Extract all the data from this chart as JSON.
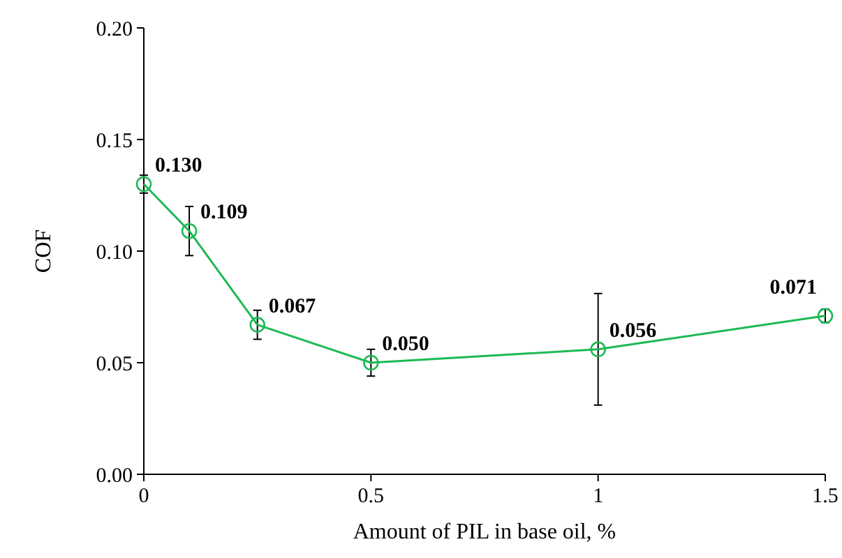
{
  "chart_data": {
    "type": "line",
    "xlabel": "Amount of PIL in base oil, %",
    "ylabel": "COF",
    "x": [
      0,
      0.1,
      0.25,
      0.5,
      1,
      1.5
    ],
    "series": [
      {
        "color": "#1db954",
        "values": [
          0.13,
          0.109,
          0.067,
          0.05,
          0.056,
          0.071
        ],
        "errors": [
          0.004,
          0.011,
          0.0065,
          0.006,
          0.025,
          0.003
        ],
        "value_labels": [
          "0.130",
          "0.109",
          "0.067",
          "0.050",
          "0.056",
          "0.071"
        ]
      }
    ],
    "xlim": [
      0,
      1.5
    ],
    "xticks": [
      0,
      0.5,
      1,
      1.5
    ],
    "ylim": [
      0,
      0.2
    ],
    "yticks": [
      {
        "value": 0,
        "label": "0.00"
      },
      {
        "value": 0.05,
        "label": "0.05"
      },
      {
        "value": 0.1,
        "label": "0.10"
      },
      {
        "value": 0.15,
        "label": "0.15"
      },
      {
        "value": 0.2,
        "label": "0.20"
      }
    ],
    "marker": "circle",
    "grid": false,
    "line_style": "solid"
  }
}
